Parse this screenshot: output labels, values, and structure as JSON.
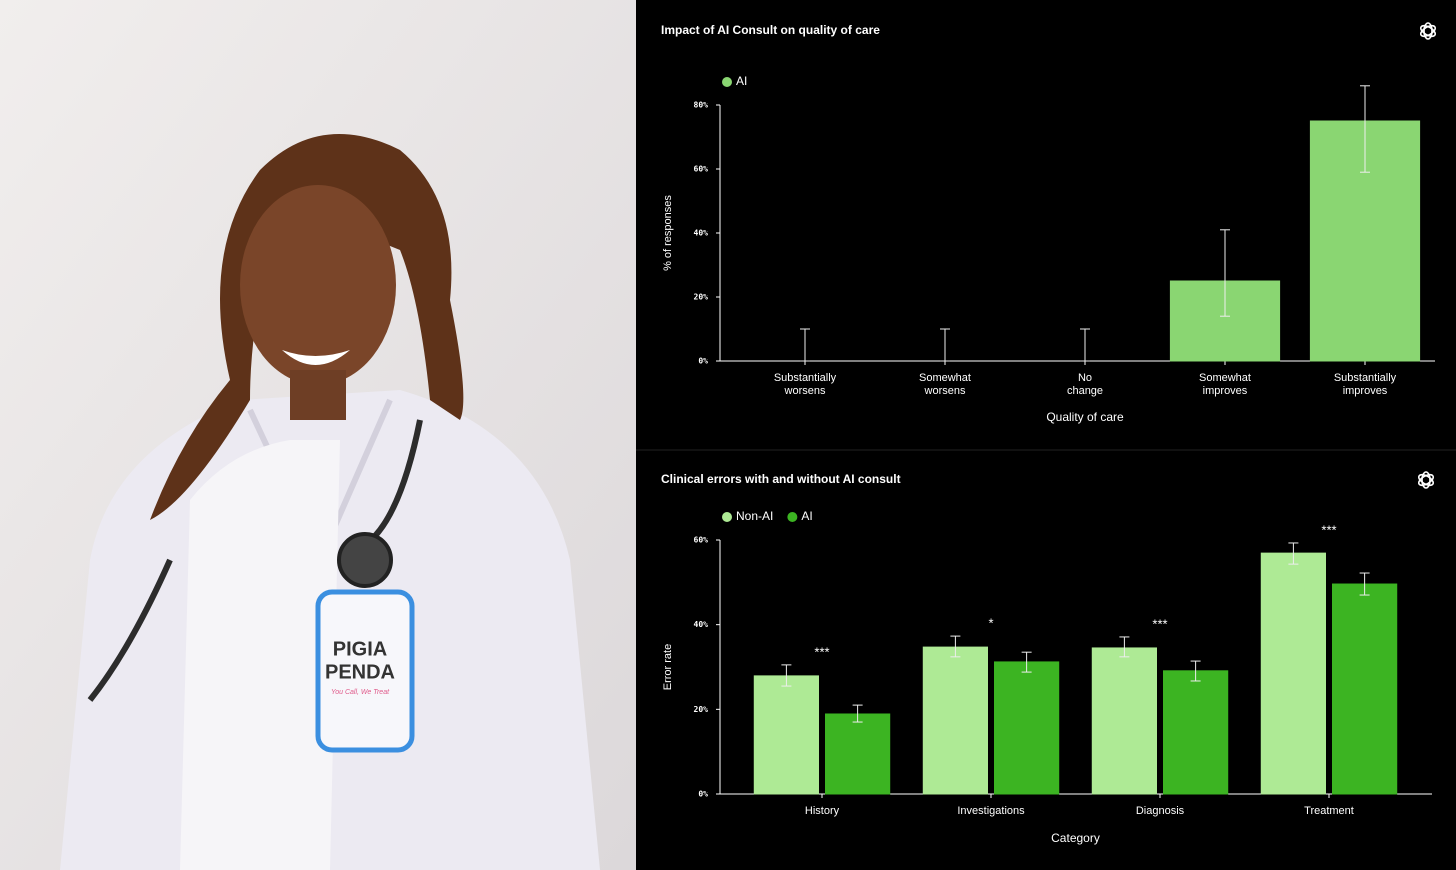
{
  "photo": {
    "badge_title": [
      "PIGIA",
      "PENDA"
    ],
    "badge_tagline": "You Call, We Treat"
  },
  "chart_data": [
    {
      "type": "bar",
      "title": "Impact of AI Consult on quality of care",
      "x_label": "Quality of care",
      "y_label": "% of responses",
      "categories": [
        "Substantially worsens",
        "Somewhat worsens",
        "No change",
        "Somewhat improves",
        "Substantially improves"
      ],
      "series": [
        {
          "name": "AI",
          "color": "#8ad672",
          "values": [
            0,
            0,
            0,
            25,
            75
          ],
          "lower": [
            0,
            0,
            0,
            14,
            59
          ],
          "upper": [
            10,
            10,
            10,
            41,
            86
          ]
        }
      ],
      "ylim": [
        0,
        80
      ],
      "yticks": [
        {
          "value": 0,
          "label": "0%"
        },
        {
          "value": 20,
          "label": "20%"
        },
        {
          "value": 40,
          "label": "40%"
        },
        {
          "value": 60,
          "label": "60%"
        },
        {
          "value": 80,
          "label": "80%"
        }
      ]
    },
    {
      "type": "bar",
      "title": "Clinical errors with and without AI consult",
      "x_label": "Category",
      "y_label": "Error rate",
      "categories": [
        "History",
        "Investigations",
        "Diagnosis",
        "Treatment"
      ],
      "series": [
        {
          "name": "Non-AI",
          "color": "#aeea95",
          "values": [
            27.9,
            34.7,
            34.5,
            56.9
          ],
          "lower": [
            25.5,
            32.4,
            32.4,
            54.3
          ],
          "upper": [
            30.5,
            37.3,
            37.1,
            59.3
          ]
        },
        {
          "name": "AI",
          "color": "#3cb422",
          "values": [
            18.9,
            31.2,
            29.1,
            49.6
          ],
          "lower": [
            17,
            28.8,
            26.7,
            47
          ],
          "upper": [
            21,
            33.5,
            31.4,
            52.2
          ]
        }
      ],
      "annotations": [
        "***",
        "*",
        "***",
        "***"
      ],
      "ylim": [
        0,
        60
      ],
      "yticks": [
        {
          "value": 0,
          "label": "0%"
        },
        {
          "value": 20,
          "label": "20%"
        },
        {
          "value": 40,
          "label": "40%"
        },
        {
          "value": 60,
          "label": "60%"
        }
      ]
    }
  ]
}
